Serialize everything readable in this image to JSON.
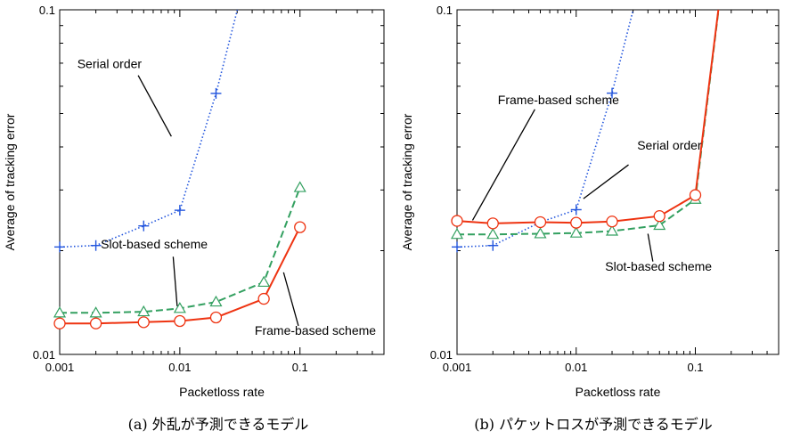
{
  "chart_data": [
    {
      "type": "line",
      "caption": "(a) 外乱が予測できるモデル",
      "xlabel": "Packetloss rate",
      "ylabel": "Average of tracking error",
      "xscale": "log",
      "yscale": "log",
      "xlim": [
        0.001,
        0.5
      ],
      "ylim": [
        0.01,
        0.1
      ],
      "xticks": [
        "0.001",
        "0.01",
        "0.1"
      ],
      "yticks": [
        "0.01",
        "0.1"
      ],
      "grid": false,
      "series": [
        {
          "key": "serial",
          "color": "#2255dd",
          "style": "dotted",
          "marker": "plus",
          "x": [
            0.001,
            0.002,
            0.005,
            0.01,
            0.02,
            0.05
          ],
          "y": [
            0.0205,
            0.0207,
            0.0236,
            0.0262,
            0.0572,
            0.2
          ]
        },
        {
          "key": "slot",
          "color": "#33a060",
          "style": "dashed",
          "marker": "triangle",
          "x": [
            0.001,
            0.002,
            0.005,
            0.01,
            0.02,
            0.05,
            0.1
          ],
          "y": [
            0.0132,
            0.0132,
            0.0133,
            0.0136,
            0.0142,
            0.0162,
            0.0305
          ]
        },
        {
          "key": "frame",
          "color": "#ee3311",
          "style": "solid",
          "marker": "circle",
          "x": [
            0.001,
            0.002,
            0.005,
            0.01,
            0.02,
            0.05,
            0.1
          ],
          "y": [
            0.0123,
            0.0123,
            0.0124,
            0.0125,
            0.0128,
            0.0145,
            0.0234
          ]
        }
      ],
      "annotations": [
        {
          "text": "Serial order",
          "tx": 0.0014,
          "ty": 0.0678,
          "px": 0.0045,
          "py": 0.0645,
          "ax": 0.0085,
          "ay": 0.0429
        },
        {
          "text": "Slot-based scheme",
          "tx": 0.0022,
          "ty": 0.0203,
          "px": 0.0088,
          "py": 0.0192,
          "ax": 0.0095,
          "ay": 0.0138
        },
        {
          "text": "Frame-based scheme",
          "tx": 0.042,
          "ty": 0.0114,
          "px": 0.097,
          "py": 0.0121,
          "ax": 0.073,
          "ay": 0.0173
        }
      ]
    },
    {
      "type": "line",
      "caption": "(b) パケットロスが予測できるモデル",
      "xlabel": "Packetloss rate",
      "ylabel": "Average of tracking error",
      "xscale": "log",
      "yscale": "log",
      "xlim": [
        0.001,
        0.5
      ],
      "ylim": [
        0.01,
        0.1
      ],
      "xticks": [
        "0.001",
        "0.01",
        "0.1"
      ],
      "yticks": [
        "0.01",
        "0.1"
      ],
      "grid": false,
      "series": [
        {
          "key": "serial",
          "color": "#2255dd",
          "style": "dotted",
          "marker": "plus",
          "x": [
            0.001,
            0.002,
            0.005,
            0.01,
            0.02,
            0.05
          ],
          "y": [
            0.0205,
            0.0207,
            0.0242,
            0.0263,
            0.0573,
            0.2
          ]
        },
        {
          "key": "slot",
          "color": "#33a060",
          "style": "dashed",
          "marker": "triangle",
          "x": [
            0.001,
            0.002,
            0.005,
            0.01,
            0.02,
            0.05,
            0.1,
            0.2
          ],
          "y": [
            0.0223,
            0.0223,
            0.0224,
            0.0225,
            0.0228,
            0.0237,
            0.0282,
            0.2
          ]
        },
        {
          "key": "frame",
          "color": "#ee3311",
          "style": "solid",
          "marker": "circle",
          "x": [
            0.001,
            0.002,
            0.005,
            0.01,
            0.02,
            0.05,
            0.1,
            0.2
          ],
          "y": [
            0.0244,
            0.024,
            0.0242,
            0.0241,
            0.0243,
            0.0252,
            0.029,
            0.2
          ]
        }
      ],
      "annotations": [
        {
          "text": "Frame-based scheme",
          "tx": 0.0022,
          "ty": 0.0533,
          "px": 0.0045,
          "py": 0.0514,
          "ax": 0.00135,
          "ay": 0.0245
        },
        {
          "text": "Serial order",
          "tx": 0.0325,
          "ty": 0.0393,
          "px": 0.0275,
          "py": 0.0355,
          "ax": 0.0115,
          "ay": 0.0283
        },
        {
          "text": "Slot-based scheme",
          "tx": 0.0175,
          "ty": 0.0175,
          "px": 0.044,
          "py": 0.0186,
          "ax": 0.04,
          "ay": 0.0224
        }
      ]
    }
  ]
}
